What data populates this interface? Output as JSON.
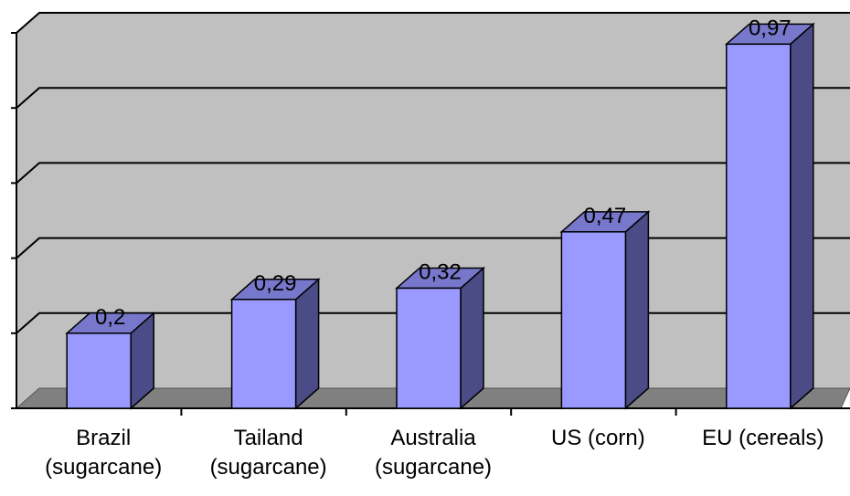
{
  "chart_data": {
    "type": "bar",
    "categories": [
      [
        "Brazil",
        "(sugarcane)"
      ],
      [
        "Tailand",
        "(sugarcane)"
      ],
      [
        "Australia",
        "(sugarcane)"
      ],
      [
        "US (corn)"
      ],
      [
        "EU (cereals)"
      ]
    ],
    "values": [
      0.2,
      0.29,
      0.32,
      0.47,
      0.97
    ],
    "value_labels": [
      "0,2",
      "0,29",
      "0,32",
      "0,47",
      "0,97"
    ],
    "title": "",
    "xlabel": "",
    "ylabel": "",
    "ylim": [
      0,
      1.0
    ],
    "grid": true,
    "style": "3d-column",
    "colors": {
      "bar_front": "#9999ff",
      "bar_side": "#4b4b87",
      "bar_top": "#7777cc",
      "wall": "#c0c0c0",
      "floor": "#808080"
    }
  }
}
